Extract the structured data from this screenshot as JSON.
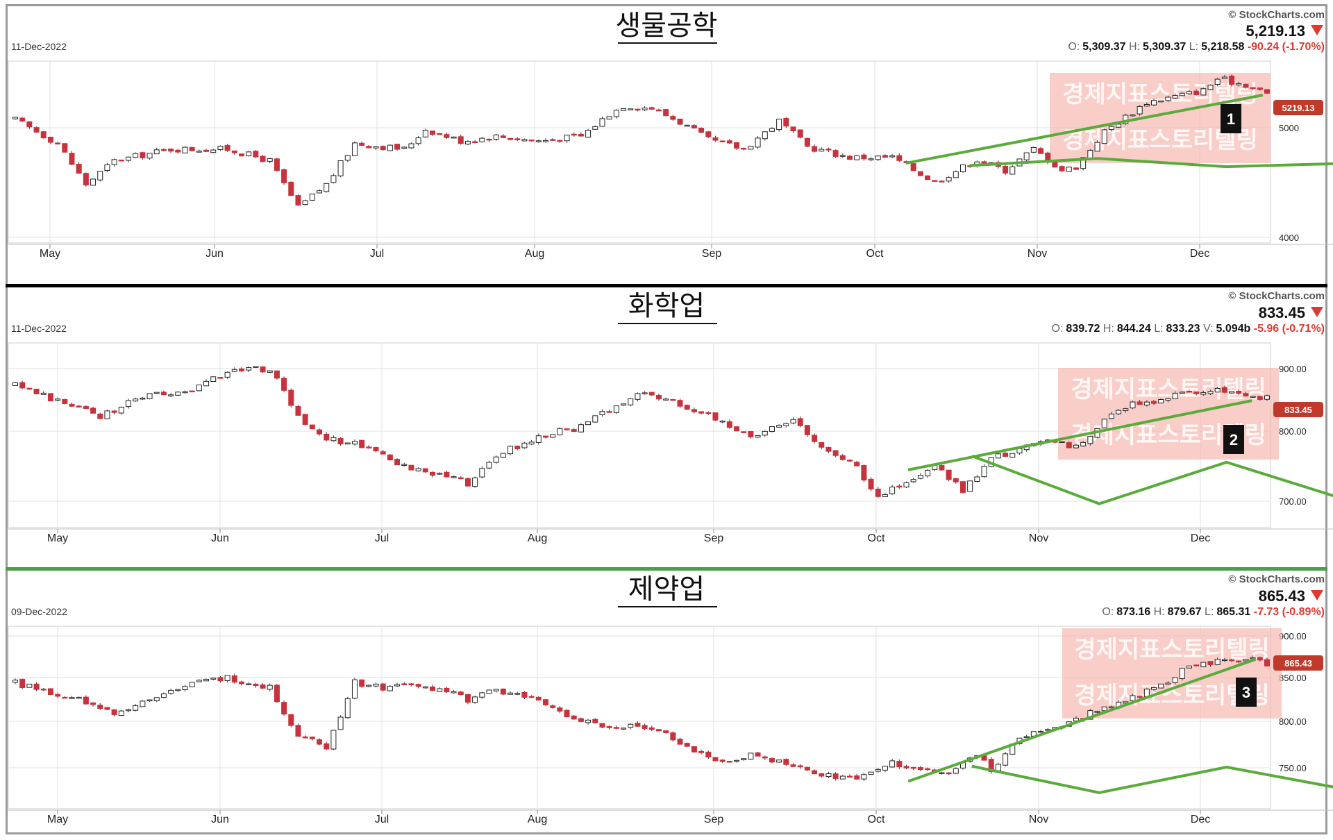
{
  "source_label": "© StockCharts.com",
  "chart_data": [
    {
      "type": "candlestick",
      "title": "생물공학",
      "date": "11-Dec-2022",
      "last": "5,219.13",
      "ohlc": [
        {
          "label": "O:",
          "value": "5,309.37"
        },
        {
          "label": "H:",
          "value": "5,309.37"
        },
        {
          "label": "L:",
          "value": "5,218.58"
        }
      ],
      "change": "-90.24 (-1.70%)",
      "price_tag": "5219.13",
      "badge": "1",
      "watermark": "경제지표스토리텔링",
      "x_ticks": [
        "May",
        "Jun",
        "Jul",
        "Aug",
        "Sep",
        "Oct",
        "Nov",
        "Dec"
      ],
      "y_ticks": [
        "5000",
        "4000"
      ],
      "grid": true,
      "y_range": [
        3950,
        5500
      ],
      "waypoints": [
        [
          0,
          5000
        ],
        [
          6,
          4800
        ],
        [
          10,
          4450
        ],
        [
          14,
          4650
        ],
        [
          22,
          4750
        ],
        [
          30,
          4750
        ],
        [
          36,
          4650
        ],
        [
          40,
          4250
        ],
        [
          44,
          4450
        ],
        [
          48,
          4800
        ],
        [
          55,
          4750
        ],
        [
          58,
          4920
        ],
        [
          63,
          4820
        ],
        [
          68,
          4860
        ],
        [
          74,
          4820
        ],
        [
          80,
          4860
        ],
        [
          84,
          5050
        ],
        [
          86,
          5120
        ],
        [
          90,
          5100
        ],
        [
          94,
          4980
        ],
        [
          98,
          4830
        ],
        [
          103,
          4750
        ],
        [
          108,
          4990
        ],
        [
          112,
          4770
        ],
        [
          118,
          4680
        ],
        [
          124,
          4680
        ],
        [
          130,
          4470
        ],
        [
          136,
          4660
        ],
        [
          140,
          4570
        ],
        [
          144,
          4750
        ],
        [
          148,
          4570
        ],
        [
          150,
          4600
        ],
        [
          154,
          4900
        ],
        [
          160,
          5150
        ],
        [
          164,
          5200
        ],
        [
          168,
          5250
        ],
        [
          170,
          5350
        ],
        [
          174,
          5300
        ],
        [
          177,
          5219
        ]
      ],
      "polyline": [
        [
          4610,
          0
        ],
        [
          4670,
          1
        ],
        [
          4600,
          2
        ],
        [
          4630,
          3
        ],
        [
          4380,
          4
        ],
        [
          4710,
          5
        ],
        [
          4520,
          6
        ],
        [
          4790,
          7
        ],
        [
          4870,
          8
        ],
        [
          4790,
          9
        ],
        [
          4700,
          10
        ]
      ],
      "trend": [
        [
          4630,
          -0.5
        ],
        [
          5210,
          10.8
        ]
      ]
    },
    {
      "type": "candlestick",
      "title": "화학업",
      "date": "11-Dec-2022",
      "last": "833.45",
      "ohlc": [
        {
          "label": "O:",
          "value": "839.72"
        },
        {
          "label": "H:",
          "value": "844.24"
        },
        {
          "label": "L:",
          "value": "833.23"
        },
        {
          "label": "V:",
          "value": "5.094b"
        }
      ],
      "change": "-5.96 (-0.71%)",
      "price_tag": "833.45",
      "badge": "2",
      "watermark": "경제지표스토리텔링",
      "x_ticks": [
        "May",
        "Jun",
        "Jul",
        "Aug",
        "Sep",
        "Oct",
        "Nov",
        "Dec"
      ],
      "y_ticks": [
        "900.00",
        "800.00",
        "700.00"
      ],
      "grid": true,
      "y_range": [
        665,
        905
      ],
      "waypoints": [
        [
          0,
          850
        ],
        [
          6,
          830
        ],
        [
          12,
          810
        ],
        [
          18,
          835
        ],
        [
          24,
          840
        ],
        [
          28,
          860
        ],
        [
          32,
          872
        ],
        [
          36,
          870
        ],
        [
          40,
          810
        ],
        [
          44,
          780
        ],
        [
          48,
          775
        ],
        [
          52,
          760
        ],
        [
          56,
          740
        ],
        [
          60,
          735
        ],
        [
          64,
          722
        ],
        [
          68,
          760
        ],
        [
          72,
          775
        ],
        [
          76,
          790
        ],
        [
          80,
          795
        ],
        [
          85,
          825
        ],
        [
          89,
          840
        ],
        [
          94,
          825
        ],
        [
          100,
          805
        ],
        [
          104,
          780
        ],
        [
          108,
          800
        ],
        [
          110,
          808
        ],
        [
          114,
          770
        ],
        [
          118,
          752
        ],
        [
          122,
          708
        ],
        [
          126,
          722
        ],
        [
          130,
          745
        ],
        [
          134,
          712
        ],
        [
          138,
          755
        ],
        [
          142,
          765
        ],
        [
          146,
          780
        ],
        [
          150,
          768
        ],
        [
          154,
          805
        ],
        [
          158,
          825
        ],
        [
          162,
          832
        ],
        [
          166,
          840
        ],
        [
          170,
          845
        ],
        [
          174,
          835
        ],
        [
          177,
          833
        ]
      ],
      "polyline": [
        [
          758,
          0
        ],
        [
          696,
          1
        ],
        [
          750,
          2
        ],
        [
          698,
          3
        ],
        [
          768,
          4
        ],
        [
          743,
          5
        ],
        [
          810,
          6
        ]
      ],
      "trend": [
        [
          740,
          -0.5
        ],
        [
          830,
          10.5
        ]
      ]
    },
    {
      "type": "candlestick",
      "title": "제약업",
      "date": "09-Dec-2022",
      "last": "865.43",
      "ohlc": [
        {
          "label": "O:",
          "value": "873.16"
        },
        {
          "label": "H:",
          "value": "879.67"
        },
        {
          "label": "L:",
          "value": "865.31"
        }
      ],
      "change": "-7.73 (-0.89%)",
      "price_tag": "865.43",
      "badge": "3",
      "watermark": "경제지표스토리텔링",
      "x_ticks": [
        "May",
        "Jun",
        "Jul",
        "Aug",
        "Sep",
        "Oct",
        "Nov",
        "Dec"
      ],
      "y_ticks": [
        "900.00",
        "850.00",
        "800.00",
        "750.00"
      ],
      "grid": true,
      "y_range": [
        712,
        905
      ],
      "waypoints": [
        [
          0,
          845
        ],
        [
          8,
          830
        ],
        [
          14,
          812
        ],
        [
          20,
          832
        ],
        [
          26,
          845
        ],
        [
          30,
          850
        ],
        [
          36,
          840
        ],
        [
          40,
          790
        ],
        [
          44,
          778
        ],
        [
          48,
          845
        ],
        [
          52,
          840
        ],
        [
          56,
          842
        ],
        [
          60,
          838
        ],
        [
          64,
          828
        ],
        [
          68,
          838
        ],
        [
          72,
          830
        ],
        [
          76,
          818
        ],
        [
          80,
          805
        ],
        [
          84,
          800
        ],
        [
          88,
          798
        ],
        [
          92,
          790
        ],
        [
          96,
          773
        ],
        [
          100,
          760
        ],
        [
          104,
          770
        ],
        [
          108,
          762
        ],
        [
          112,
          752
        ],
        [
          116,
          745
        ],
        [
          120,
          745
        ],
        [
          124,
          760
        ],
        [
          128,
          752
        ],
        [
          132,
          748
        ],
        [
          136,
          770
        ],
        [
          138,
          752
        ],
        [
          142,
          790
        ],
        [
          146,
          795
        ],
        [
          150,
          805
        ],
        [
          154,
          820
        ],
        [
          158,
          830
        ],
        [
          162,
          843
        ],
        [
          166,
          862
        ],
        [
          170,
          868
        ],
        [
          174,
          872
        ],
        [
          177,
          865
        ]
      ],
      "polyline": [
        [
          757,
          0
        ],
        [
          729,
          1
        ],
        [
          756,
          2
        ],
        [
          731,
          3
        ],
        [
          792,
          4
        ],
        [
          782,
          5
        ],
        [
          808,
          6
        ]
      ],
      "trend": [
        [
          741,
          -0.5
        ],
        [
          870,
          10.6
        ]
      ]
    }
  ]
}
